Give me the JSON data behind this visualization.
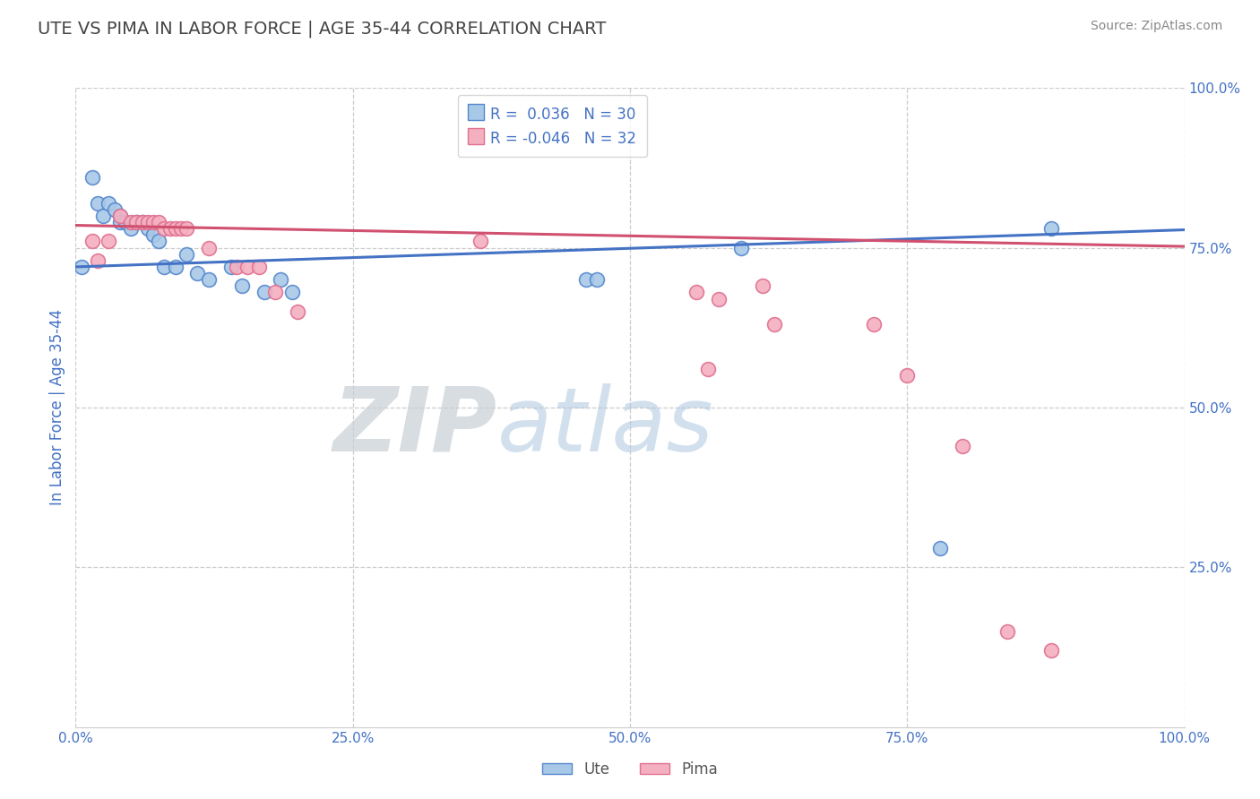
{
  "title": "UTE VS PIMA IN LABOR FORCE | AGE 35-44 CORRELATION CHART",
  "source_text": "Source: ZipAtlas.com",
  "ylabel": "In Labor Force | Age 35-44",
  "xlim": [
    0.0,
    1.0
  ],
  "ylim": [
    0.0,
    1.0
  ],
  "ute_color": "#a8c8e8",
  "pima_color": "#f4b0c0",
  "ute_edge_color": "#5588cc",
  "pima_edge_color": "#e07090",
  "ute_line_color": "#4472c4",
  "pima_line_color": "#d05070",
  "legend_r_ute": "0.036",
  "legend_n_ute": "30",
  "legend_r_pima": "-0.046",
  "legend_n_pima": "32",
  "background_color": "#ffffff",
  "grid_color": "#cccccc",
  "title_color": "#444444",
  "axis_label_color": "#4472c4",
  "watermark1_color": "#d0dce8",
  "watermark2_color": "#b8cce0",
  "ute_x": [
    0.005,
    0.015,
    0.02,
    0.025,
    0.03,
    0.035,
    0.04,
    0.04,
    0.045,
    0.05,
    0.055,
    0.06,
    0.065,
    0.07,
    0.075,
    0.08,
    0.09,
    0.1,
    0.11,
    0.12,
    0.14,
    0.15,
    0.17,
    0.185,
    0.195,
    0.46,
    0.47,
    0.6,
    0.78,
    0.88
  ],
  "ute_y": [
    0.72,
    0.86,
    0.82,
    0.8,
    0.82,
    0.81,
    0.8,
    0.79,
    0.79,
    0.78,
    0.79,
    0.79,
    0.78,
    0.77,
    0.76,
    0.72,
    0.72,
    0.74,
    0.71,
    0.7,
    0.72,
    0.69,
    0.68,
    0.7,
    0.68,
    0.7,
    0.7,
    0.75,
    0.28,
    0.78
  ],
  "pima_x": [
    0.015,
    0.02,
    0.03,
    0.04,
    0.05,
    0.055,
    0.06,
    0.065,
    0.07,
    0.075,
    0.08,
    0.085,
    0.09,
    0.095,
    0.1,
    0.12,
    0.145,
    0.155,
    0.165,
    0.18,
    0.2,
    0.365,
    0.56,
    0.57,
    0.58,
    0.62,
    0.63,
    0.72,
    0.75,
    0.8,
    0.84,
    0.88
  ],
  "pima_y": [
    0.76,
    0.73,
    0.76,
    0.8,
    0.79,
    0.79,
    0.79,
    0.79,
    0.79,
    0.79,
    0.78,
    0.78,
    0.78,
    0.78,
    0.78,
    0.75,
    0.72,
    0.72,
    0.72,
    0.68,
    0.65,
    0.76,
    0.68,
    0.56,
    0.67,
    0.69,
    0.63,
    0.63,
    0.55,
    0.44,
    0.15,
    0.12
  ]
}
